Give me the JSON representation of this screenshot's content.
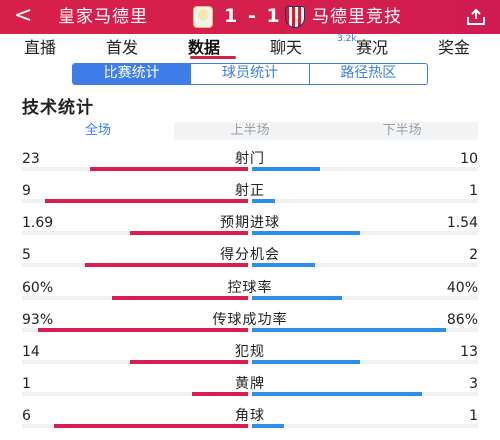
{
  "header": {
    "back_glyph": "<",
    "home_team": "皇家马德里",
    "score": "1 - 1",
    "away_team": "马德里竞技",
    "home_crest_icon": "real-madrid-crest-icon",
    "away_crest_icon": "atletico-madrid-crest-icon",
    "share_icon": "share-icon"
  },
  "nav": {
    "tabs": [
      {
        "label": "直播"
      },
      {
        "label": "首发"
      },
      {
        "label": "数据"
      },
      {
        "label": "聊天"
      },
      {
        "label": "赛况"
      },
      {
        "label": "奖金"
      }
    ],
    "active": "数据",
    "chat_count": "3.2k"
  },
  "segmented": {
    "items": [
      {
        "label": "比赛统计"
      },
      {
        "label": "球员统计"
      },
      {
        "label": "路径热区"
      }
    ],
    "active": "比赛统计"
  },
  "section_title": "技术统计",
  "period_tabs": [
    {
      "label": "全场"
    },
    {
      "label": "上半场"
    },
    {
      "label": "下半场"
    }
  ],
  "period_active": "全场",
  "colors": {
    "home": "#d81e52",
    "away": "#2c8fe8",
    "accent": "#3e7ee8",
    "header": "#d51f4c"
  },
  "stats": [
    {
      "label": "射门",
      "home": "23",
      "away": "10",
      "home_share": 0.7,
      "away_share": 0.3
    },
    {
      "label": "射正",
      "home": "9",
      "away": "1",
      "home_share": 0.9,
      "away_share": 0.1
    },
    {
      "label": "预期进球",
      "home": "1.69",
      "away": "1.54",
      "home_share": 0.52,
      "away_share": 0.48
    },
    {
      "label": "得分机会",
      "home": "5",
      "away": "2",
      "home_share": 0.72,
      "away_share": 0.28
    },
    {
      "label": "控球率",
      "home": "60%",
      "away": "40%",
      "home_share": 0.6,
      "away_share": 0.4
    },
    {
      "label": "传球成功率",
      "home": "93%",
      "away": "86%",
      "home_share": 0.93,
      "away_share": 0.86
    },
    {
      "label": "犯规",
      "home": "14",
      "away": "13",
      "home_share": 0.52,
      "away_share": 0.48
    },
    {
      "label": "黄牌",
      "home": "1",
      "away": "3",
      "home_share": 0.25,
      "away_share": 0.75
    },
    {
      "label": "角球",
      "home": "6",
      "away": "1",
      "home_share": 0.86,
      "away_share": 0.14
    }
  ]
}
